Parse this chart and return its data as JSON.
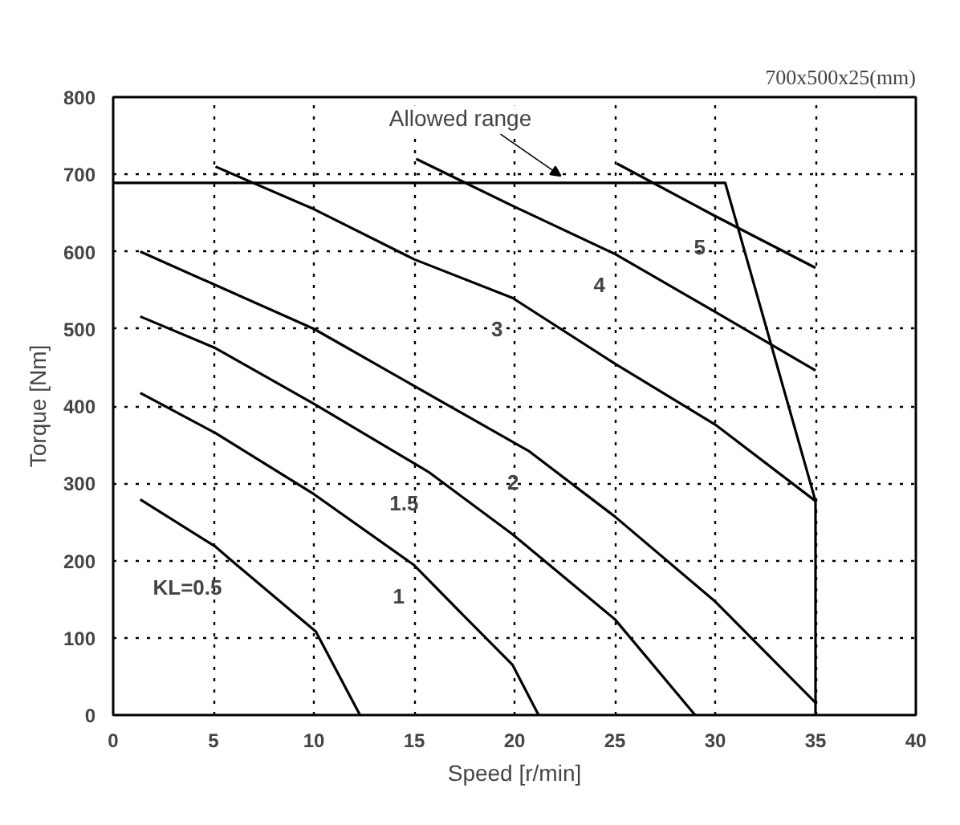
{
  "chart_data": {
    "type": "line",
    "xlabel": "Speed [r/min]",
    "ylabel": "Torque [Nm]",
    "xlim": [
      0,
      40
    ],
    "ylim": [
      0,
      800
    ],
    "xticks": [
      0,
      5,
      10,
      15,
      20,
      25,
      30,
      35,
      40
    ],
    "yticks": [
      0,
      100,
      200,
      300,
      400,
      500,
      600,
      700,
      800
    ],
    "grid": true,
    "line_style": "solid",
    "marker": "none",
    "annotations": [
      {
        "text": "Allowed range",
        "x": 22.3,
        "y": 698
      },
      "700x500x25(mm)"
    ],
    "series": [
      {
        "name": "KL=0.5",
        "color": "#000000",
        "x": [
          1.35,
          5.1,
          5.9,
          10.1,
          12.3
        ],
        "values": [
          279,
          218,
          200,
          108,
          0
        ]
      },
      {
        "name": "1",
        "color": "#000000",
        "x": [
          1.35,
          5.1,
          10,
          15,
          17.3,
          19.9,
          21.2
        ],
        "values": [
          417,
          365,
          286,
          194,
          133,
          65,
          0
        ]
      },
      {
        "name": "1.5",
        "color": "#000000",
        "x": [
          1.35,
          5.1,
          10,
          15.7,
          19.9,
          25,
          29
        ],
        "values": [
          516,
          475,
          403,
          315,
          234,
          124,
          0
        ]
      },
      {
        "name": "2",
        "color": "#000000",
        "x": [
          1.35,
          10,
          17.3,
          20.7,
          25,
          30,
          35
        ],
        "values": [
          600,
          500,
          392,
          342,
          257,
          147,
          16
        ]
      },
      {
        "name": "3",
        "color": "#000000",
        "x": [
          5.1,
          10,
          15,
          19.9,
          25,
          30,
          35
        ],
        "values": [
          710,
          655,
          590,
          540,
          455,
          376,
          277
        ]
      },
      {
        "name": "4",
        "color": "#000000",
        "x": [
          15.1,
          20,
          25,
          30,
          35
        ],
        "values": [
          720,
          658,
          597,
          522,
          446
        ]
      },
      {
        "name": "5",
        "color": "#000000",
        "x": [
          25.1,
          30,
          35
        ],
        "values": [
          714,
          646,
          579
        ]
      },
      {
        "color": "#000000",
        "x": [
          0,
          30.5,
          35,
          35
        ],
        "values": [
          689,
          689,
          277,
          0
        ]
      }
    ]
  }
}
